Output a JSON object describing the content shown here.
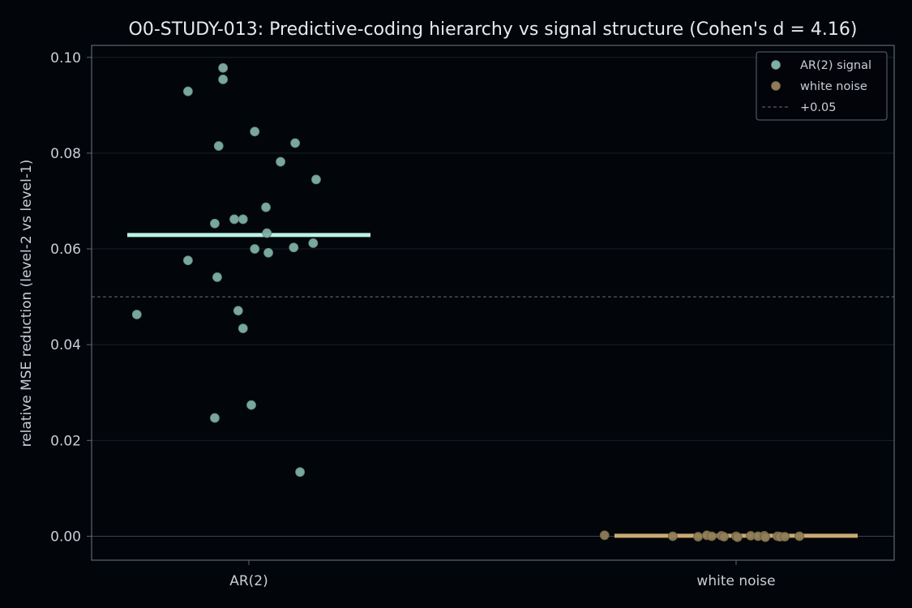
{
  "chart_data": {
    "type": "scatter",
    "title": "O0-STUDY-013: Predictive-coding hierarchy vs signal structure  (Cohen's d = 4.16)",
    "ylabel": "relative MSE reduction (level-2 vs level-1)",
    "xlabel": "",
    "categories": [
      "AR(2)",
      "white noise"
    ],
    "ylim": [
      -0.005,
      0.1025
    ],
    "yticks": [
      "0.00",
      "0.02",
      "0.04",
      "0.06",
      "0.08",
      "0.10"
    ],
    "ytick_values": [
      0.0,
      0.02,
      0.04,
      0.06,
      0.08,
      0.1
    ],
    "grid": true,
    "legend_position": "top-right",
    "reference_line": {
      "label": "+0.05",
      "value": 0.05
    },
    "series": [
      {
        "name": "AR(2) signal",
        "category": "AR(2)",
        "color": "#7fb0a3",
        "mean_color": "#b8f2e2",
        "mean": 0.0629,
        "points": [
          {
            "jitter": -0.23,
            "y": 0.0463
          },
          {
            "jitter": -0.125,
            "y": 0.0929
          },
          {
            "jitter": -0.125,
            "y": 0.0576
          },
          {
            "jitter": -0.07,
            "y": 0.0653
          },
          {
            "jitter": -0.07,
            "y": 0.0247
          },
          {
            "jitter": -0.065,
            "y": 0.0541
          },
          {
            "jitter": -0.062,
            "y": 0.0815
          },
          {
            "jitter": -0.053,
            "y": 0.0978
          },
          {
            "jitter": -0.053,
            "y": 0.0954
          },
          {
            "jitter": -0.03,
            "y": 0.0662
          },
          {
            "jitter": -0.022,
            "y": 0.0471
          },
          {
            "jitter": -0.012,
            "y": 0.0662
          },
          {
            "jitter": -0.012,
            "y": 0.0434
          },
          {
            "jitter": 0.005,
            "y": 0.0274
          },
          {
            "jitter": 0.012,
            "y": 0.0845
          },
          {
            "jitter": 0.012,
            "y": 0.06
          },
          {
            "jitter": 0.035,
            "y": 0.0687
          },
          {
            "jitter": 0.037,
            "y": 0.0633
          },
          {
            "jitter": 0.04,
            "y": 0.0592
          },
          {
            "jitter": 0.065,
            "y": 0.0782
          },
          {
            "jitter": 0.092,
            "y": 0.0603
          },
          {
            "jitter": 0.095,
            "y": 0.0821
          },
          {
            "jitter": 0.105,
            "y": 0.0134
          },
          {
            "jitter": 0.132,
            "y": 0.0612
          },
          {
            "jitter": 0.138,
            "y": 0.0745
          }
        ]
      },
      {
        "name": "white noise",
        "category": "white noise",
        "color": "#8f7d57",
        "mean_color": "#c9aa72",
        "mean": 0.0001,
        "points": [
          {
            "jitter": -0.27,
            "y": 0.0002
          },
          {
            "jitter": -0.13,
            "y": 0.0
          },
          {
            "jitter": -0.078,
            "y": -0.0001
          },
          {
            "jitter": -0.06,
            "y": 0.0002
          },
          {
            "jitter": -0.05,
            "y": 0.0
          },
          {
            "jitter": -0.03,
            "y": 0.0001
          },
          {
            "jitter": -0.025,
            "y": -0.0001
          },
          {
            "jitter": 0.0,
            "y": 0.0
          },
          {
            "jitter": 0.003,
            "y": -0.0002
          },
          {
            "jitter": 0.03,
            "y": 0.0001
          },
          {
            "jitter": 0.045,
            "y": 0.0
          },
          {
            "jitter": 0.058,
            "y": 0.0001
          },
          {
            "jitter": 0.06,
            "y": -0.0002
          },
          {
            "jitter": 0.085,
            "y": 0.0
          },
          {
            "jitter": 0.09,
            "y": -0.0001
          },
          {
            "jitter": 0.1,
            "y": -0.0001
          },
          {
            "jitter": 0.13,
            "y": 0.0
          }
        ]
      }
    ],
    "colors": {
      "background": "#020509",
      "axes_frame": "#5d6872",
      "grid": "#1a2026",
      "zero_line": "#3b444d",
      "reference": "#6a737c"
    }
  }
}
